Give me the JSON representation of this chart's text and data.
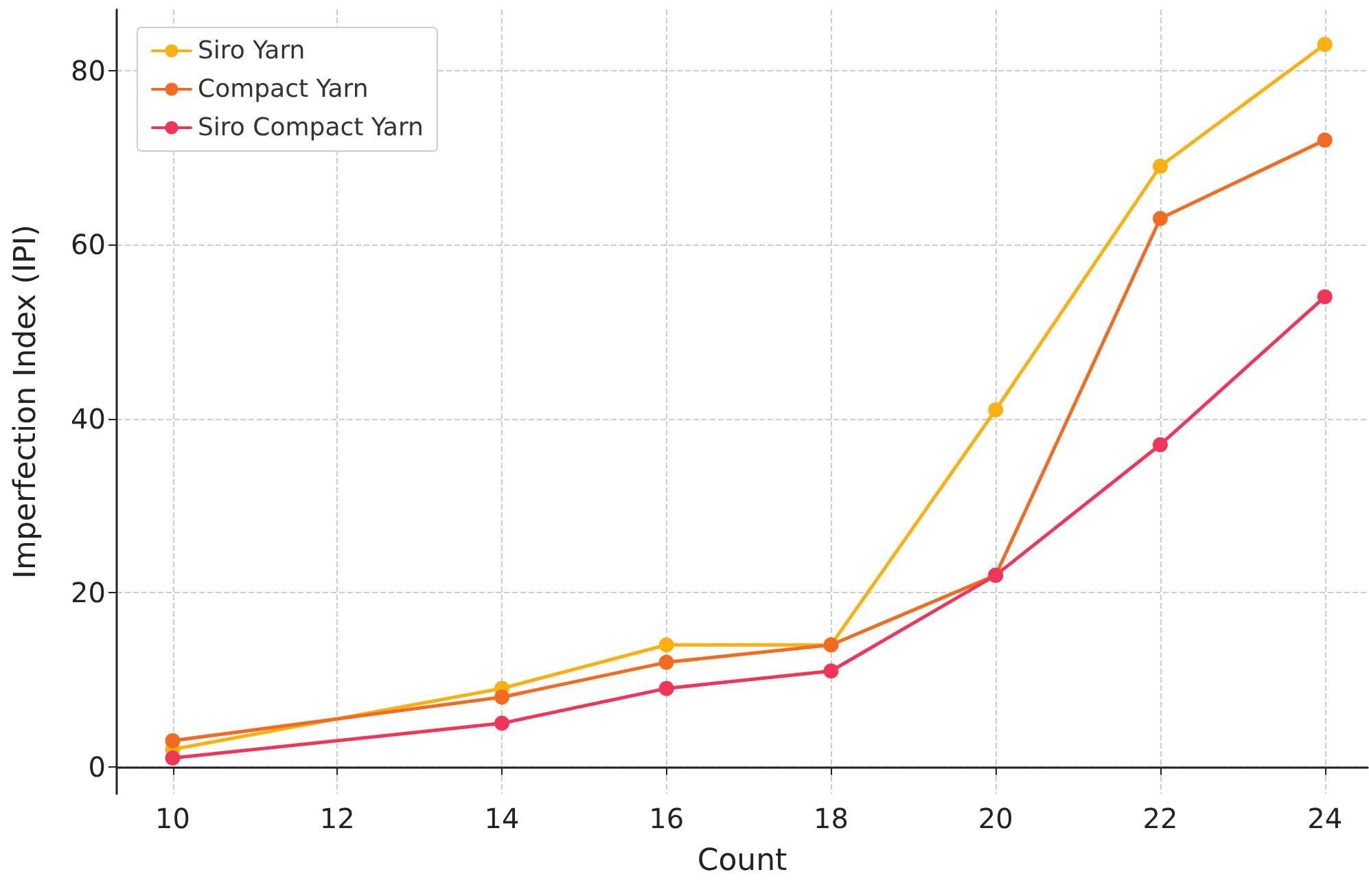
{
  "chart_data": {
    "type": "line",
    "xlabel": "Count",
    "ylabel": "Imperfection Index (IPI)",
    "x": [
      10,
      14,
      16,
      18,
      20,
      22,
      24
    ],
    "series": [
      {
        "name": "Siro Yarn",
        "color": "#fbb00f",
        "values": [
          2,
          9,
          14,
          14,
          41,
          69,
          83
        ]
      },
      {
        "name": "Compact Yarn",
        "color": "#f26b21",
        "values": [
          3,
          8,
          12,
          14,
          22,
          63,
          72
        ]
      },
      {
        "name": "Siro Compact Yarn",
        "color": "#f03558",
        "values": [
          1,
          5,
          9,
          11,
          22,
          37,
          54
        ]
      }
    ],
    "xlim": [
      9.32,
      24.52
    ],
    "xticks": [
      10,
      12,
      14,
      16,
      18,
      20,
      22,
      24
    ],
    "ylim": [
      -3.1,
      87
    ],
    "yticks": [
      0,
      20,
      40,
      60,
      80
    ],
    "grid": true,
    "legend": "top left",
    "marker": "circle",
    "line_style": "solid"
  }
}
